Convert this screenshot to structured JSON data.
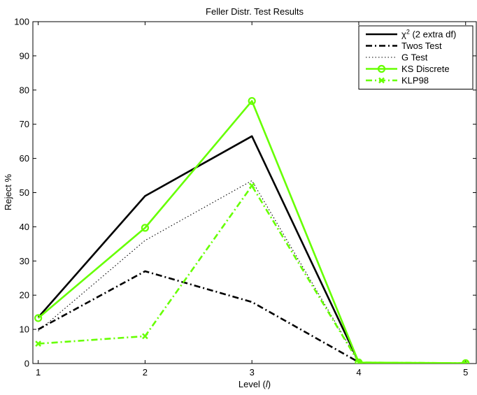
{
  "chart_data": {
    "type": "line",
    "title": "Feller Distr. Test Results",
    "xlabel_main": "Level (",
    "xlabel_italic": "l",
    "xlabel_end": ")",
    "ylabel": "Reject %",
    "x": [
      1,
      2,
      3,
      4,
      5
    ],
    "xlim": [
      0.95,
      5.1
    ],
    "ylim": [
      0,
      100
    ],
    "xticks": [
      1,
      2,
      3,
      4,
      5
    ],
    "yticks": [
      0,
      10,
      20,
      30,
      40,
      50,
      60,
      70,
      80,
      90,
      100
    ],
    "grid": false,
    "legend_position": "top-right",
    "series": [
      {
        "name": "χ",
        "name_sup": "2",
        "name_suffix": " (2 extra df)",
        "values": [
          13.5,
          49,
          66.5,
          0.4,
          null
        ],
        "color": "#000000",
        "dash": "solid",
        "width": 2.6,
        "marker": "none"
      },
      {
        "name": "Twos Test",
        "values": [
          10,
          27,
          18,
          0.4,
          null
        ],
        "color": "#000000",
        "dash": "dashdot",
        "width": 2.6,
        "marker": "none"
      },
      {
        "name": "G Test",
        "values": [
          9.5,
          36,
          53.5,
          0.4,
          null
        ],
        "color": "#000000",
        "dash": "dotted",
        "width": 1.1,
        "marker": "none"
      },
      {
        "name": "KS Discrete",
        "values": [
          13.3,
          39.7,
          76.8,
          0.3,
          0.1
        ],
        "color": "#66ff00",
        "dash": "solid",
        "width": 2.6,
        "marker": "circle"
      },
      {
        "name": "KLP98",
        "values": [
          5.8,
          8,
          52,
          0.3,
          0.1
        ],
        "color": "#66ff00",
        "dash": "dashdot",
        "width": 2.6,
        "marker": "x"
      }
    ]
  }
}
